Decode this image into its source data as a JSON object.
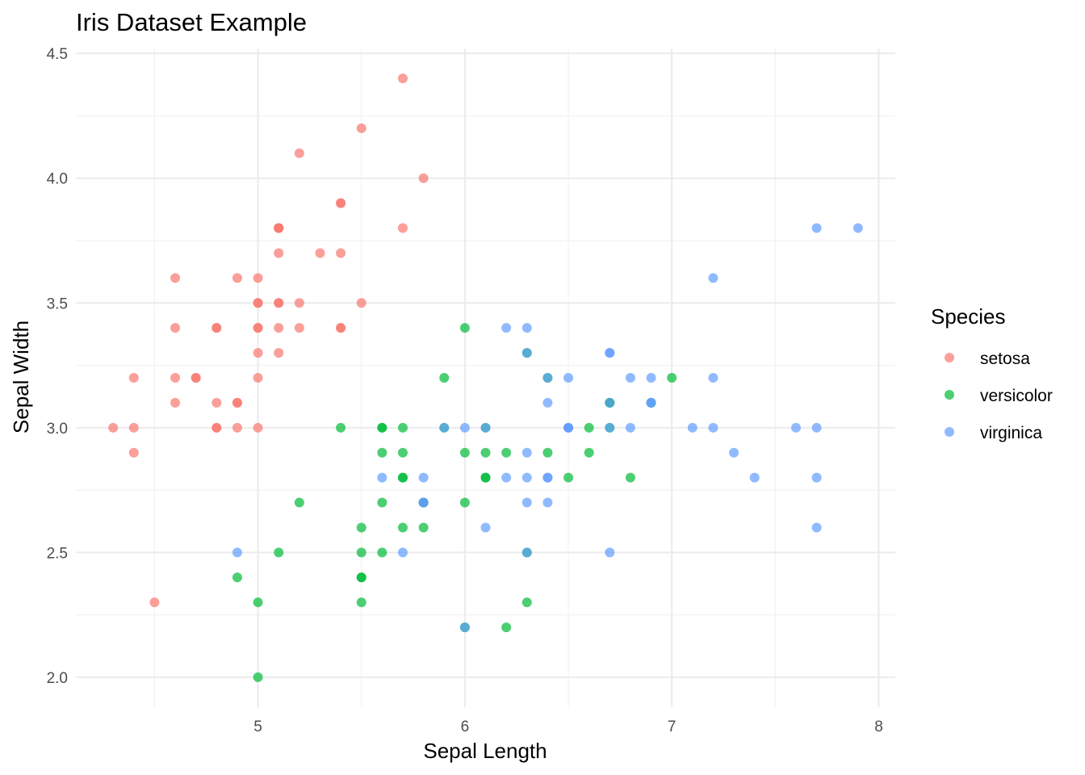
{
  "chart_data": {
    "type": "scatter",
    "title": "Iris Dataset Example",
    "xlabel": "Sepal Length",
    "ylabel": "Sepal Width",
    "xlim": [
      4.12,
      8.08
    ],
    "ylim": [
      1.88,
      4.52
    ],
    "xticks": [
      5,
      6,
      7,
      8
    ],
    "xtick_labels": [
      "5",
      "6",
      "7",
      "8"
    ],
    "yticks": [
      2.0,
      2.5,
      3.0,
      3.5,
      4.0,
      4.5
    ],
    "ytick_labels": [
      "2.0",
      "2.5",
      "3.0",
      "3.5",
      "4.0",
      "4.5"
    ],
    "grid": true,
    "legend": {
      "title": "Species",
      "position": "right"
    },
    "series": [
      {
        "name": "setosa",
        "color": "#F8766D",
        "x": [
          5.1,
          4.9,
          4.7,
          4.6,
          5.0,
          5.4,
          4.6,
          5.0,
          4.4,
          4.9,
          5.4,
          4.8,
          4.8,
          4.3,
          5.8,
          5.7,
          5.4,
          5.1,
          5.7,
          5.1,
          5.4,
          5.1,
          4.6,
          5.1,
          4.8,
          5.0,
          5.0,
          5.2,
          5.2,
          4.7,
          4.8,
          5.4,
          5.2,
          5.5,
          4.9,
          5.0,
          5.5,
          4.9,
          4.4,
          5.1,
          5.0,
          4.5,
          4.4,
          5.0,
          5.1,
          4.8,
          5.1,
          4.6,
          5.3,
          5.0
        ],
        "y": [
          3.5,
          3.0,
          3.2,
          3.1,
          3.6,
          3.9,
          3.4,
          3.4,
          2.9,
          3.1,
          3.7,
          3.4,
          3.0,
          3.0,
          4.0,
          4.4,
          3.9,
          3.5,
          3.8,
          3.8,
          3.4,
          3.7,
          3.6,
          3.3,
          3.4,
          3.0,
          3.4,
          3.5,
          3.4,
          3.2,
          3.1,
          3.4,
          4.1,
          4.2,
          3.1,
          3.2,
          3.5,
          3.6,
          3.0,
          3.4,
          3.5,
          2.3,
          3.2,
          3.5,
          3.8,
          3.0,
          3.8,
          3.2,
          3.7,
          3.3
        ]
      },
      {
        "name": "versicolor",
        "color": "#00BA38",
        "x": [
          7.0,
          6.4,
          6.9,
          5.5,
          6.5,
          5.7,
          6.3,
          4.9,
          6.6,
          5.2,
          5.0,
          5.9,
          6.0,
          6.1,
          5.6,
          6.7,
          5.6,
          5.8,
          6.2,
          5.6,
          5.9,
          6.1,
          6.3,
          6.1,
          6.4,
          6.6,
          6.8,
          6.7,
          6.0,
          5.7,
          5.5,
          5.5,
          5.8,
          6.0,
          5.4,
          6.0,
          6.7,
          6.3,
          5.6,
          5.5,
          5.5,
          6.1,
          5.8,
          5.0,
          5.6,
          5.7,
          5.7,
          6.2,
          5.1,
          5.7
        ],
        "y": [
          3.2,
          3.2,
          3.1,
          2.3,
          2.8,
          2.8,
          3.3,
          2.4,
          2.9,
          2.7,
          2.0,
          3.0,
          2.2,
          2.9,
          2.9,
          3.1,
          3.0,
          2.7,
          2.2,
          2.5,
          3.2,
          2.8,
          2.5,
          2.8,
          2.9,
          3.0,
          2.8,
          3.0,
          2.9,
          2.6,
          2.4,
          2.4,
          2.7,
          2.7,
          3.0,
          3.4,
          3.1,
          2.3,
          3.0,
          2.5,
          2.6,
          3.0,
          2.6,
          2.3,
          2.7,
          3.0,
          2.9,
          2.9,
          2.5,
          2.8
        ]
      },
      {
        "name": "virginica",
        "color": "#619CFF",
        "x": [
          6.3,
          5.8,
          7.1,
          6.3,
          6.5,
          7.6,
          4.9,
          7.3,
          6.7,
          7.2,
          6.5,
          6.4,
          6.8,
          5.7,
          5.8,
          6.4,
          6.5,
          7.7,
          7.7,
          6.0,
          6.9,
          5.6,
          7.7,
          6.3,
          6.7,
          7.2,
          6.2,
          6.1,
          6.4,
          7.2,
          7.4,
          7.9,
          6.4,
          6.3,
          6.1,
          7.7,
          6.3,
          6.4,
          6.0,
          6.9,
          6.7,
          6.9,
          5.8,
          6.8,
          6.7,
          6.7,
          6.3,
          6.5,
          6.2,
          5.9
        ],
        "y": [
          3.3,
          2.7,
          3.0,
          2.9,
          3.0,
          3.0,
          2.5,
          2.9,
          2.5,
          3.6,
          3.2,
          2.7,
          3.0,
          2.5,
          2.8,
          3.2,
          3.0,
          3.8,
          2.6,
          2.2,
          3.2,
          2.8,
          2.8,
          2.7,
          3.3,
          3.2,
          2.8,
          3.0,
          2.8,
          3.0,
          2.8,
          3.8,
          2.8,
          2.8,
          2.6,
          3.0,
          3.4,
          3.1,
          3.0,
          3.1,
          3.1,
          3.1,
          2.7,
          3.2,
          3.3,
          3.0,
          2.5,
          3.0,
          3.4,
          3.0
        ]
      }
    ]
  }
}
